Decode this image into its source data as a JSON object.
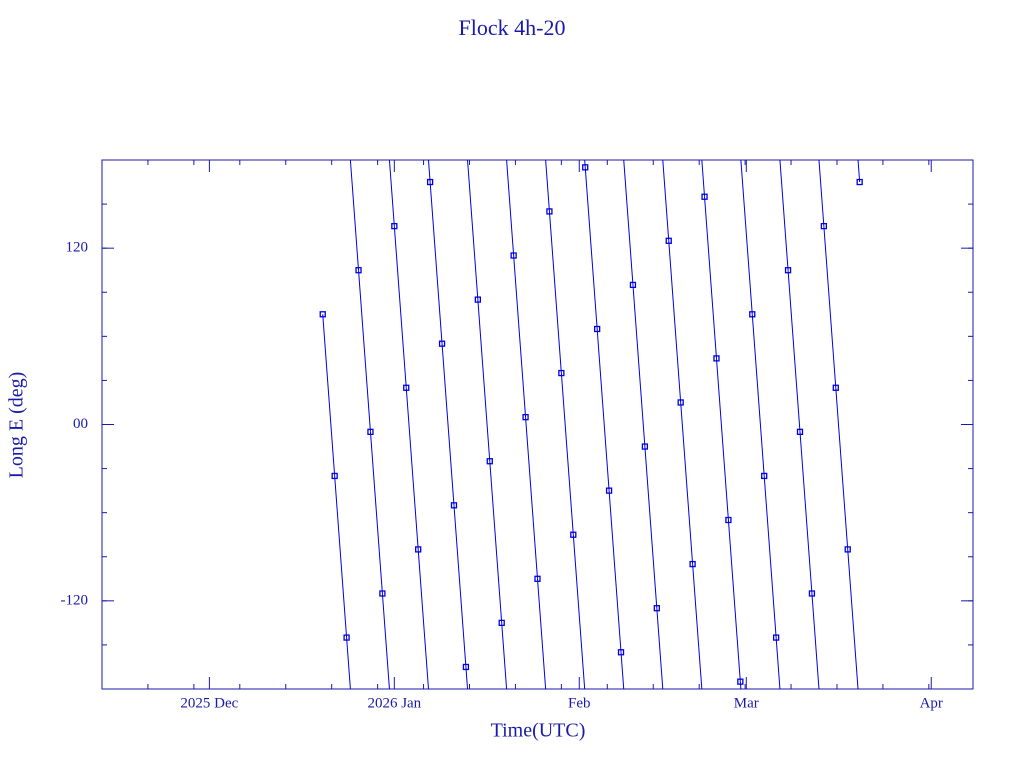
{
  "chart_data": {
    "type": "line",
    "title": "Flock 4h-20",
    "x_label": "Time(UTC)",
    "y_label": "Long E (deg)",
    "color": "#0000e0",
    "xlim": [
      "2025-11-13",
      "2026-04-08"
    ],
    "xticks": [
      {
        "value": "2025-12-01",
        "label": "2025 Dec"
      },
      {
        "value": "2026-01-01",
        "label": "2026 Jan"
      },
      {
        "value": "2026-02-01",
        "label": "Feb"
      },
      {
        "value": "2026-03-01",
        "label": "Mar"
      },
      {
        "value": "2026-04-01",
        "label": "Apr"
      }
    ],
    "ylim": [
      -180,
      180
    ],
    "yticks": [
      -120,
      {
        "value": 0,
        "label": "00"
      },
      120
    ],
    "x": [
      "2025-12-20",
      "2025-12-22",
      "2025-12-24",
      "2025-12-26",
      "2025-12-28",
      "2025-12-30",
      "2026-01-01",
      "2026-01-03",
      "2026-01-05",
      "2026-01-07",
      "2026-01-09",
      "2026-01-11",
      "2026-01-13",
      "2026-01-15",
      "2026-01-17",
      "2026-01-19",
      "2026-01-21",
      "2026-01-23",
      "2026-01-25",
      "2026-01-27",
      "2026-01-29",
      "2026-01-31",
      "2026-02-02",
      "2026-02-04",
      "2026-02-06",
      "2026-02-08",
      "2026-02-10",
      "2026-02-12",
      "2026-02-14",
      "2026-02-16",
      "2026-02-18",
      "2026-02-20",
      "2026-02-22",
      "2026-02-24",
      "2026-02-26",
      "2026-02-28",
      "2026-03-02",
      "2026-03-04",
      "2026-03-06",
      "2026-03-08",
      "2026-03-10",
      "2026-03-12",
      "2026-03-14",
      "2026-03-16",
      "2026-03-18",
      "2026-03-20"
    ],
    "values": [
      75,
      -35,
      -145,
      105,
      -5,
      -115,
      135,
      25,
      -85,
      165,
      55,
      -55,
      -165,
      85,
      -25,
      -135,
      115,
      5,
      -105,
      145,
      35,
      -75,
      175,
      65,
      -45,
      -155,
      95,
      -15,
      -125,
      125,
      15,
      -95,
      155,
      45,
      -65,
      -175,
      75,
      -35,
      -145,
      105,
      -5,
      -115,
      135,
      25,
      -85,
      165
    ]
  }
}
